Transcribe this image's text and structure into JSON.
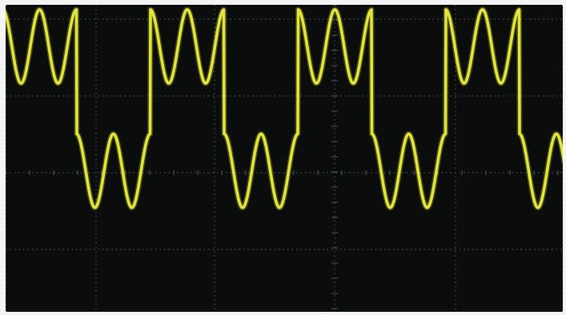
{
  "screen": {
    "background": "#0b0c0c",
    "frame_color": "#f4f4f4",
    "grid_color": "#4b5a5d",
    "trace_color": "#e2e63c",
    "grid": {
      "shown": true,
      "style": "dotted",
      "center_axes_have_minor_ticks": true
    }
  },
  "trace": {
    "shape": "square wave with superimposed sine ripple",
    "high_level_fraction": 0.84,
    "low_level_fraction": 0.3,
    "ripple_amplitude_fraction": 0.16,
    "ripple_cycles_per_half_period": 2,
    "period_fraction_of_screen": 0.265
  }
}
